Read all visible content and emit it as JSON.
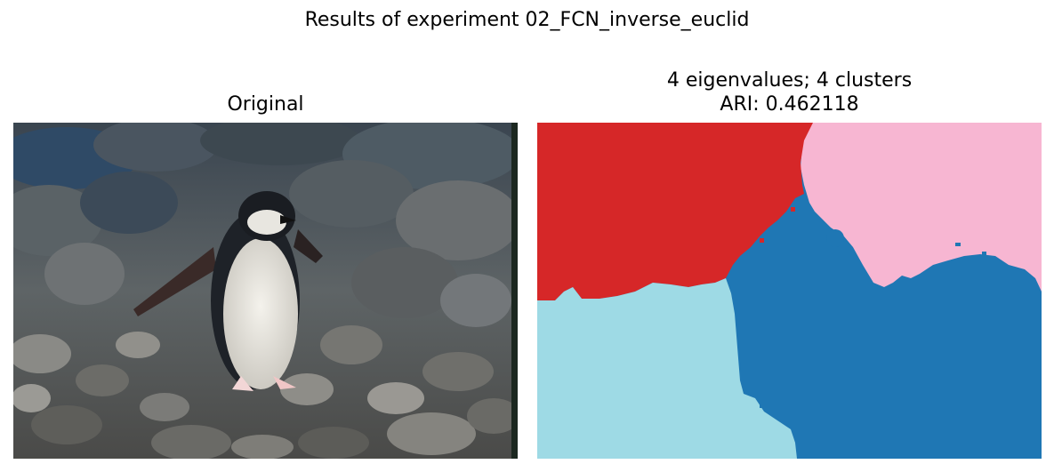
{
  "figure": {
    "suptitle": "Results of experiment 02_FCN_inverse_euclid"
  },
  "left_panel": {
    "title": "Original"
  },
  "right_panel": {
    "title_line1": "4 eigenvalues; 4 clusters",
    "title_line2": "ARI: 0.462118",
    "cluster_colors": {
      "red": "#d62728",
      "pink": "#f7b6d2",
      "light_blue": "#9edae5",
      "blue": "#1f77b4"
    }
  }
}
